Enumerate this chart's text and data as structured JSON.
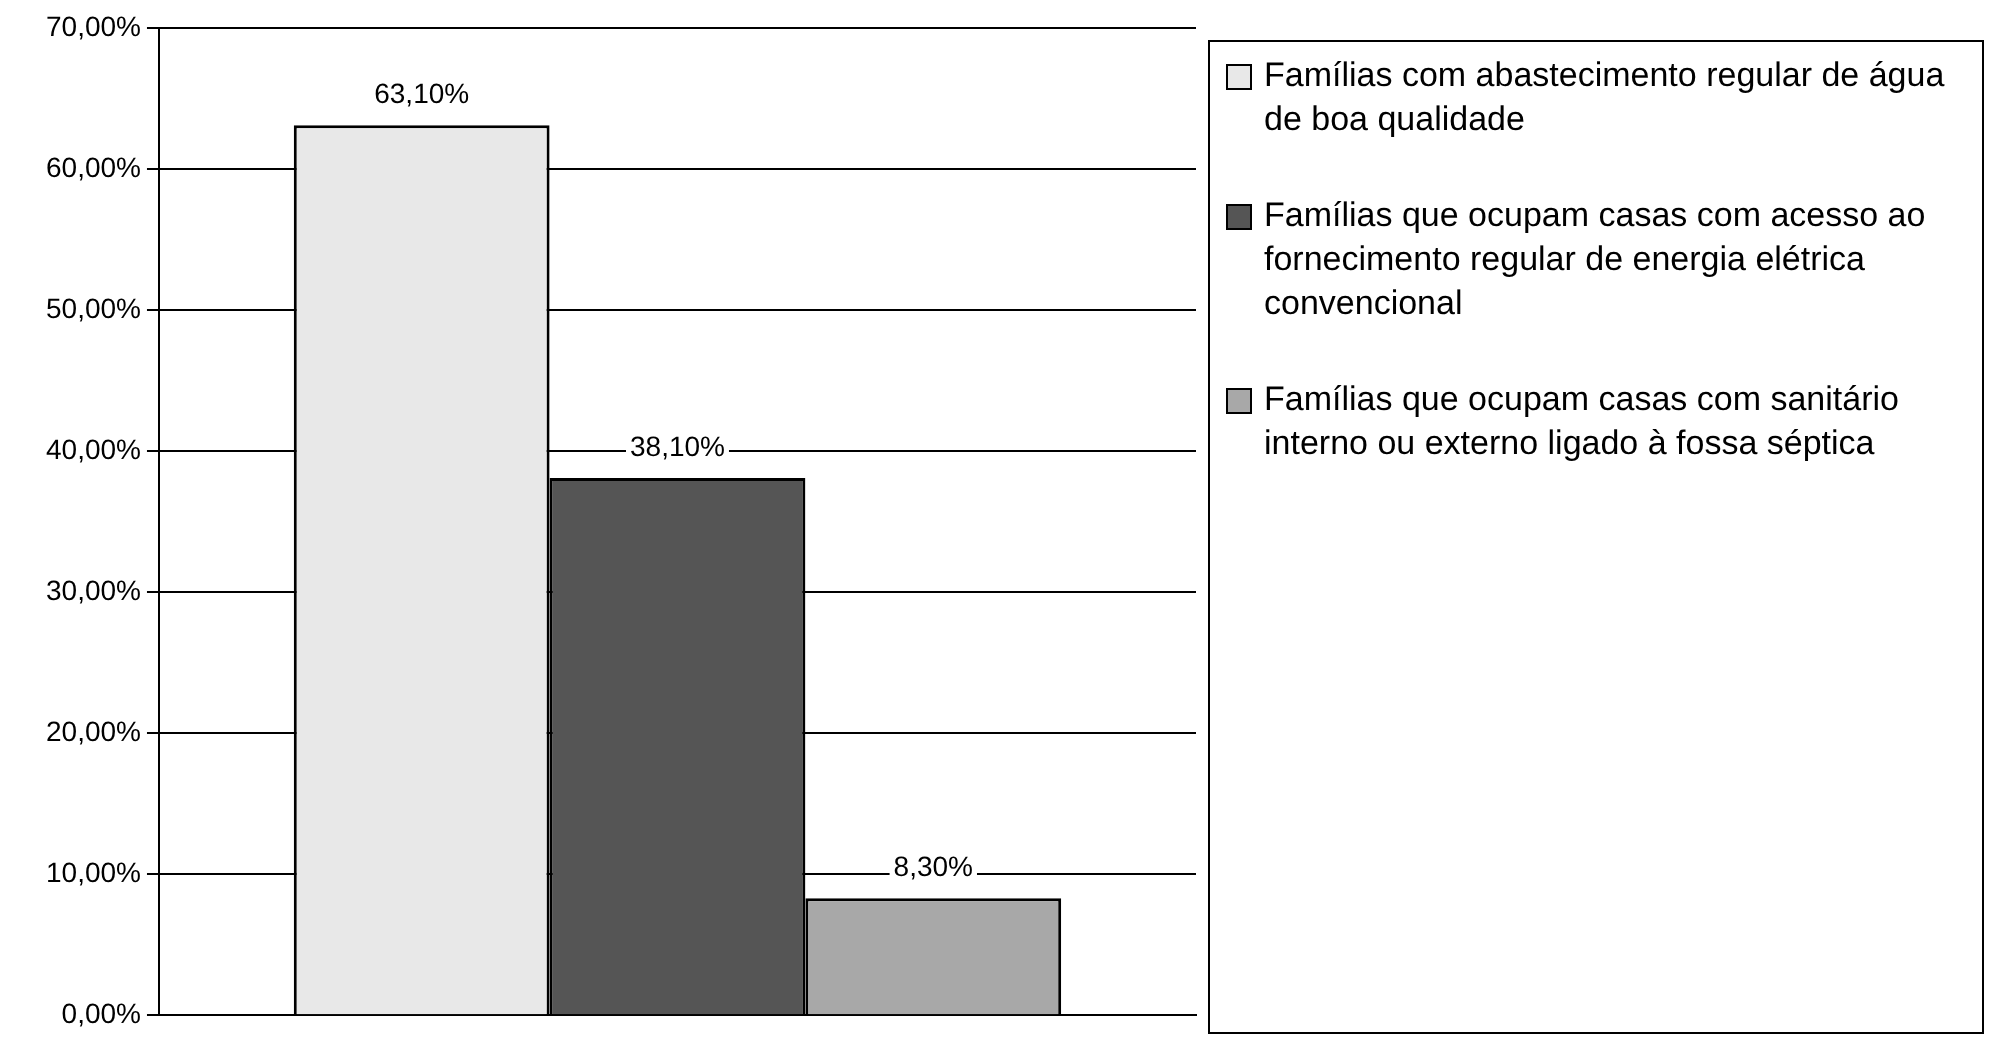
{
  "chart_data": {
    "type": "bar",
    "categories": [
      null
    ],
    "series": [
      {
        "name": "Famílias com abastecimento regular de água de boa qualidade",
        "color": "#e8e8e8",
        "values": [
          63.1
        ],
        "value_labels": [
          "63,10%"
        ]
      },
      {
        "name": "Famílias que ocupam casas com acesso ao fornecimento regular de energia elétrica convencional",
        "color": "#555555",
        "values": [
          38.1
        ],
        "value_labels": [
          "38,10%"
        ]
      },
      {
        "name": "Famílias que ocupam casas com sanitário interno ou externo ligado à fossa séptica",
        "color": "#a8a8a8",
        "values": [
          8.3
        ],
        "value_labels": [
          "8,30%"
        ]
      }
    ],
    "ylim": [
      0,
      70
    ],
    "yticks": [
      {
        "value": 0,
        "label": "0,00%"
      },
      {
        "value": 10,
        "label": "10,00%"
      },
      {
        "value": 20,
        "label": "20,00%"
      },
      {
        "value": 30,
        "label": "30,00%"
      },
      {
        "value": 40,
        "label": "40,00%"
      },
      {
        "value": 50,
        "label": "50,00%"
      },
      {
        "value": 60,
        "label": "60,00%"
      },
      {
        "value": 70,
        "label": "70,00%"
      }
    ],
    "grid": "y",
    "legend": "right"
  }
}
